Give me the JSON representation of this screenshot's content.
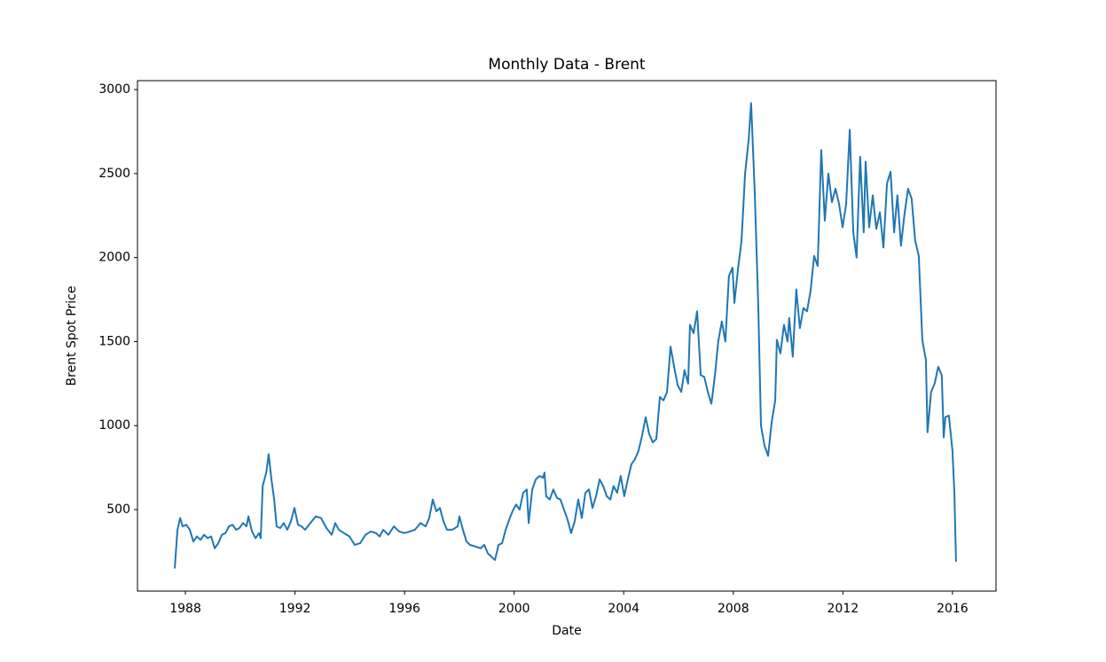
{
  "chart_data": {
    "type": "line",
    "title": "Monthly Data - Brent",
    "x_label": "Date",
    "y_label": "Brent Spot Price",
    "color": "#1f77b4",
    "x": [
      1987.61,
      1987.71,
      1987.81,
      1987.9,
      1988.03,
      1988.16,
      1988.29,
      1988.42,
      1988.55,
      1988.68,
      1988.81,
      1988.94,
      1989.07,
      1989.2,
      1989.33,
      1989.46,
      1989.59,
      1989.72,
      1989.85,
      1989.97,
      1990.1,
      1990.23,
      1990.3,
      1990.43,
      1990.56,
      1990.69,
      1990.75,
      1990.82,
      1990.95,
      1991.04,
      1991.14,
      1991.24,
      1991.33,
      1991.46,
      1991.59,
      1991.72,
      1991.85,
      1991.98,
      1992.11,
      1992.24,
      1992.37,
      1992.56,
      1992.76,
      1992.95,
      1993.15,
      1993.34,
      1993.47,
      1993.6,
      1993.79,
      1993.99,
      1994.18,
      1994.38,
      1994.57,
      1994.77,
      1994.96,
      1995.09,
      1995.22,
      1995.41,
      1995.61,
      1995.8,
      1996.0,
      1996.19,
      1996.38,
      1996.58,
      1996.77,
      1996.9,
      1997.03,
      1997.16,
      1997.29,
      1997.42,
      1997.55,
      1997.74,
      1997.94,
      1998.0,
      1998.13,
      1998.26,
      1998.39,
      1998.59,
      1998.78,
      1998.91,
      1999.04,
      1999.17,
      1999.3,
      1999.43,
      1999.56,
      1999.69,
      1999.82,
      1999.94,
      2000.07,
      2000.2,
      2000.33,
      2000.46,
      2000.53,
      2000.66,
      2000.79,
      2000.92,
      2001.05,
      2001.11,
      2001.17,
      2001.3,
      2001.43,
      2001.56,
      2001.69,
      2001.82,
      2001.95,
      2002.08,
      2002.21,
      2002.34,
      2002.47,
      2002.6,
      2002.73,
      2002.86,
      2002.99,
      2003.12,
      2003.25,
      2003.38,
      2003.51,
      2003.63,
      2003.76,
      2003.89,
      2004.02,
      2004.15,
      2004.28,
      2004.41,
      2004.54,
      2004.67,
      2004.8,
      2004.93,
      2005.06,
      2005.19,
      2005.32,
      2005.45,
      2005.58,
      2005.71,
      2005.84,
      2005.97,
      2006.1,
      2006.22,
      2006.35,
      2006.42,
      2006.55,
      2006.68,
      2006.81,
      2006.94,
      2007.07,
      2007.2,
      2007.33,
      2007.45,
      2007.58,
      2007.71,
      2007.84,
      2007.97,
      2008.04,
      2008.17,
      2008.3,
      2008.43,
      2008.56,
      2008.65,
      2008.78,
      2008.91,
      2009.01,
      2009.14,
      2009.27,
      2009.4,
      2009.53,
      2009.59,
      2009.72,
      2009.85,
      2009.98,
      2010.04,
      2010.17,
      2010.3,
      2010.43,
      2010.56,
      2010.69,
      2010.82,
      2010.95,
      2011.08,
      2011.21,
      2011.34,
      2011.47,
      2011.6,
      2011.73,
      2011.86,
      2011.99,
      2012.12,
      2012.25,
      2012.38,
      2012.5,
      2012.63,
      2012.76,
      2012.83,
      2012.96,
      2013.09,
      2013.22,
      2013.35,
      2013.48,
      2013.61,
      2013.74,
      2013.87,
      2013.99,
      2014.12,
      2014.25,
      2014.38,
      2014.51,
      2014.64,
      2014.77,
      2014.9,
      2015.03,
      2015.09,
      2015.22,
      2015.35,
      2015.48,
      2015.61,
      2015.68,
      2015.74,
      2015.87,
      2016.0,
      2016.07,
      2016.13
    ],
    "values": [
      150,
      380,
      450,
      400,
      410,
      380,
      310,
      340,
      320,
      350,
      330,
      340,
      270,
      300,
      350,
      360,
      400,
      410,
      380,
      390,
      420,
      400,
      460,
      370,
      330,
      360,
      330,
      640,
      720,
      830,
      680,
      560,
      400,
      390,
      420,
      380,
      430,
      510,
      410,
      400,
      380,
      420,
      460,
      450,
      390,
      350,
      420,
      380,
      360,
      340,
      290,
      300,
      350,
      370,
      360,
      340,
      380,
      350,
      400,
      370,
      360,
      370,
      380,
      420,
      400,
      450,
      560,
      490,
      510,
      430,
      380,
      380,
      400,
      460,
      380,
      310,
      290,
      280,
      270,
      290,
      240,
      220,
      200,
      290,
      300,
      380,
      440,
      490,
      530,
      500,
      600,
      620,
      420,
      620,
      680,
      700,
      690,
      720,
      580,
      560,
      620,
      570,
      560,
      500,
      440,
      360,
      430,
      560,
      450,
      600,
      620,
      510,
      580,
      680,
      640,
      580,
      560,
      640,
      600,
      700,
      580,
      680,
      770,
      800,
      850,
      940,
      1050,
      950,
      900,
      920,
      1170,
      1150,
      1200,
      1470,
      1350,
      1240,
      1200,
      1330,
      1250,
      1600,
      1550,
      1680,
      1300,
      1290,
      1200,
      1130,
      1300,
      1500,
      1620,
      1500,
      1890,
      1940,
      1730,
      1930,
      2100,
      2500,
      2700,
      2920,
      2400,
      1720,
      1000,
      880,
      820,
      1020,
      1150,
      1510,
      1430,
      1600,
      1500,
      1640,
      1410,
      1810,
      1580,
      1700,
      1680,
      1800,
      2010,
      1950,
      2640,
      2220,
      2500,
      2330,
      2410,
      2320,
      2180,
      2320,
      2760,
      2150,
      2000,
      2600,
      2150,
      2570,
      2180,
      2370,
      2170,
      2270,
      2060,
      2440,
      2510,
      2150,
      2370,
      2070,
      2260,
      2410,
      2350,
      2100,
      2010,
      1510,
      1390,
      960,
      1200,
      1250,
      1350,
      1300,
      930,
      1050,
      1060,
      850,
      600,
      190
    ],
    "xlim": [
      1986.25,
      2017.59
    ],
    "ylim": [
      15,
      3053
    ],
    "xticks": [
      1988,
      1992,
      1996,
      2000,
      2004,
      2008,
      2012,
      2016
    ],
    "yticks": [
      500,
      1000,
      1500,
      2000,
      2500,
      3000
    ]
  }
}
